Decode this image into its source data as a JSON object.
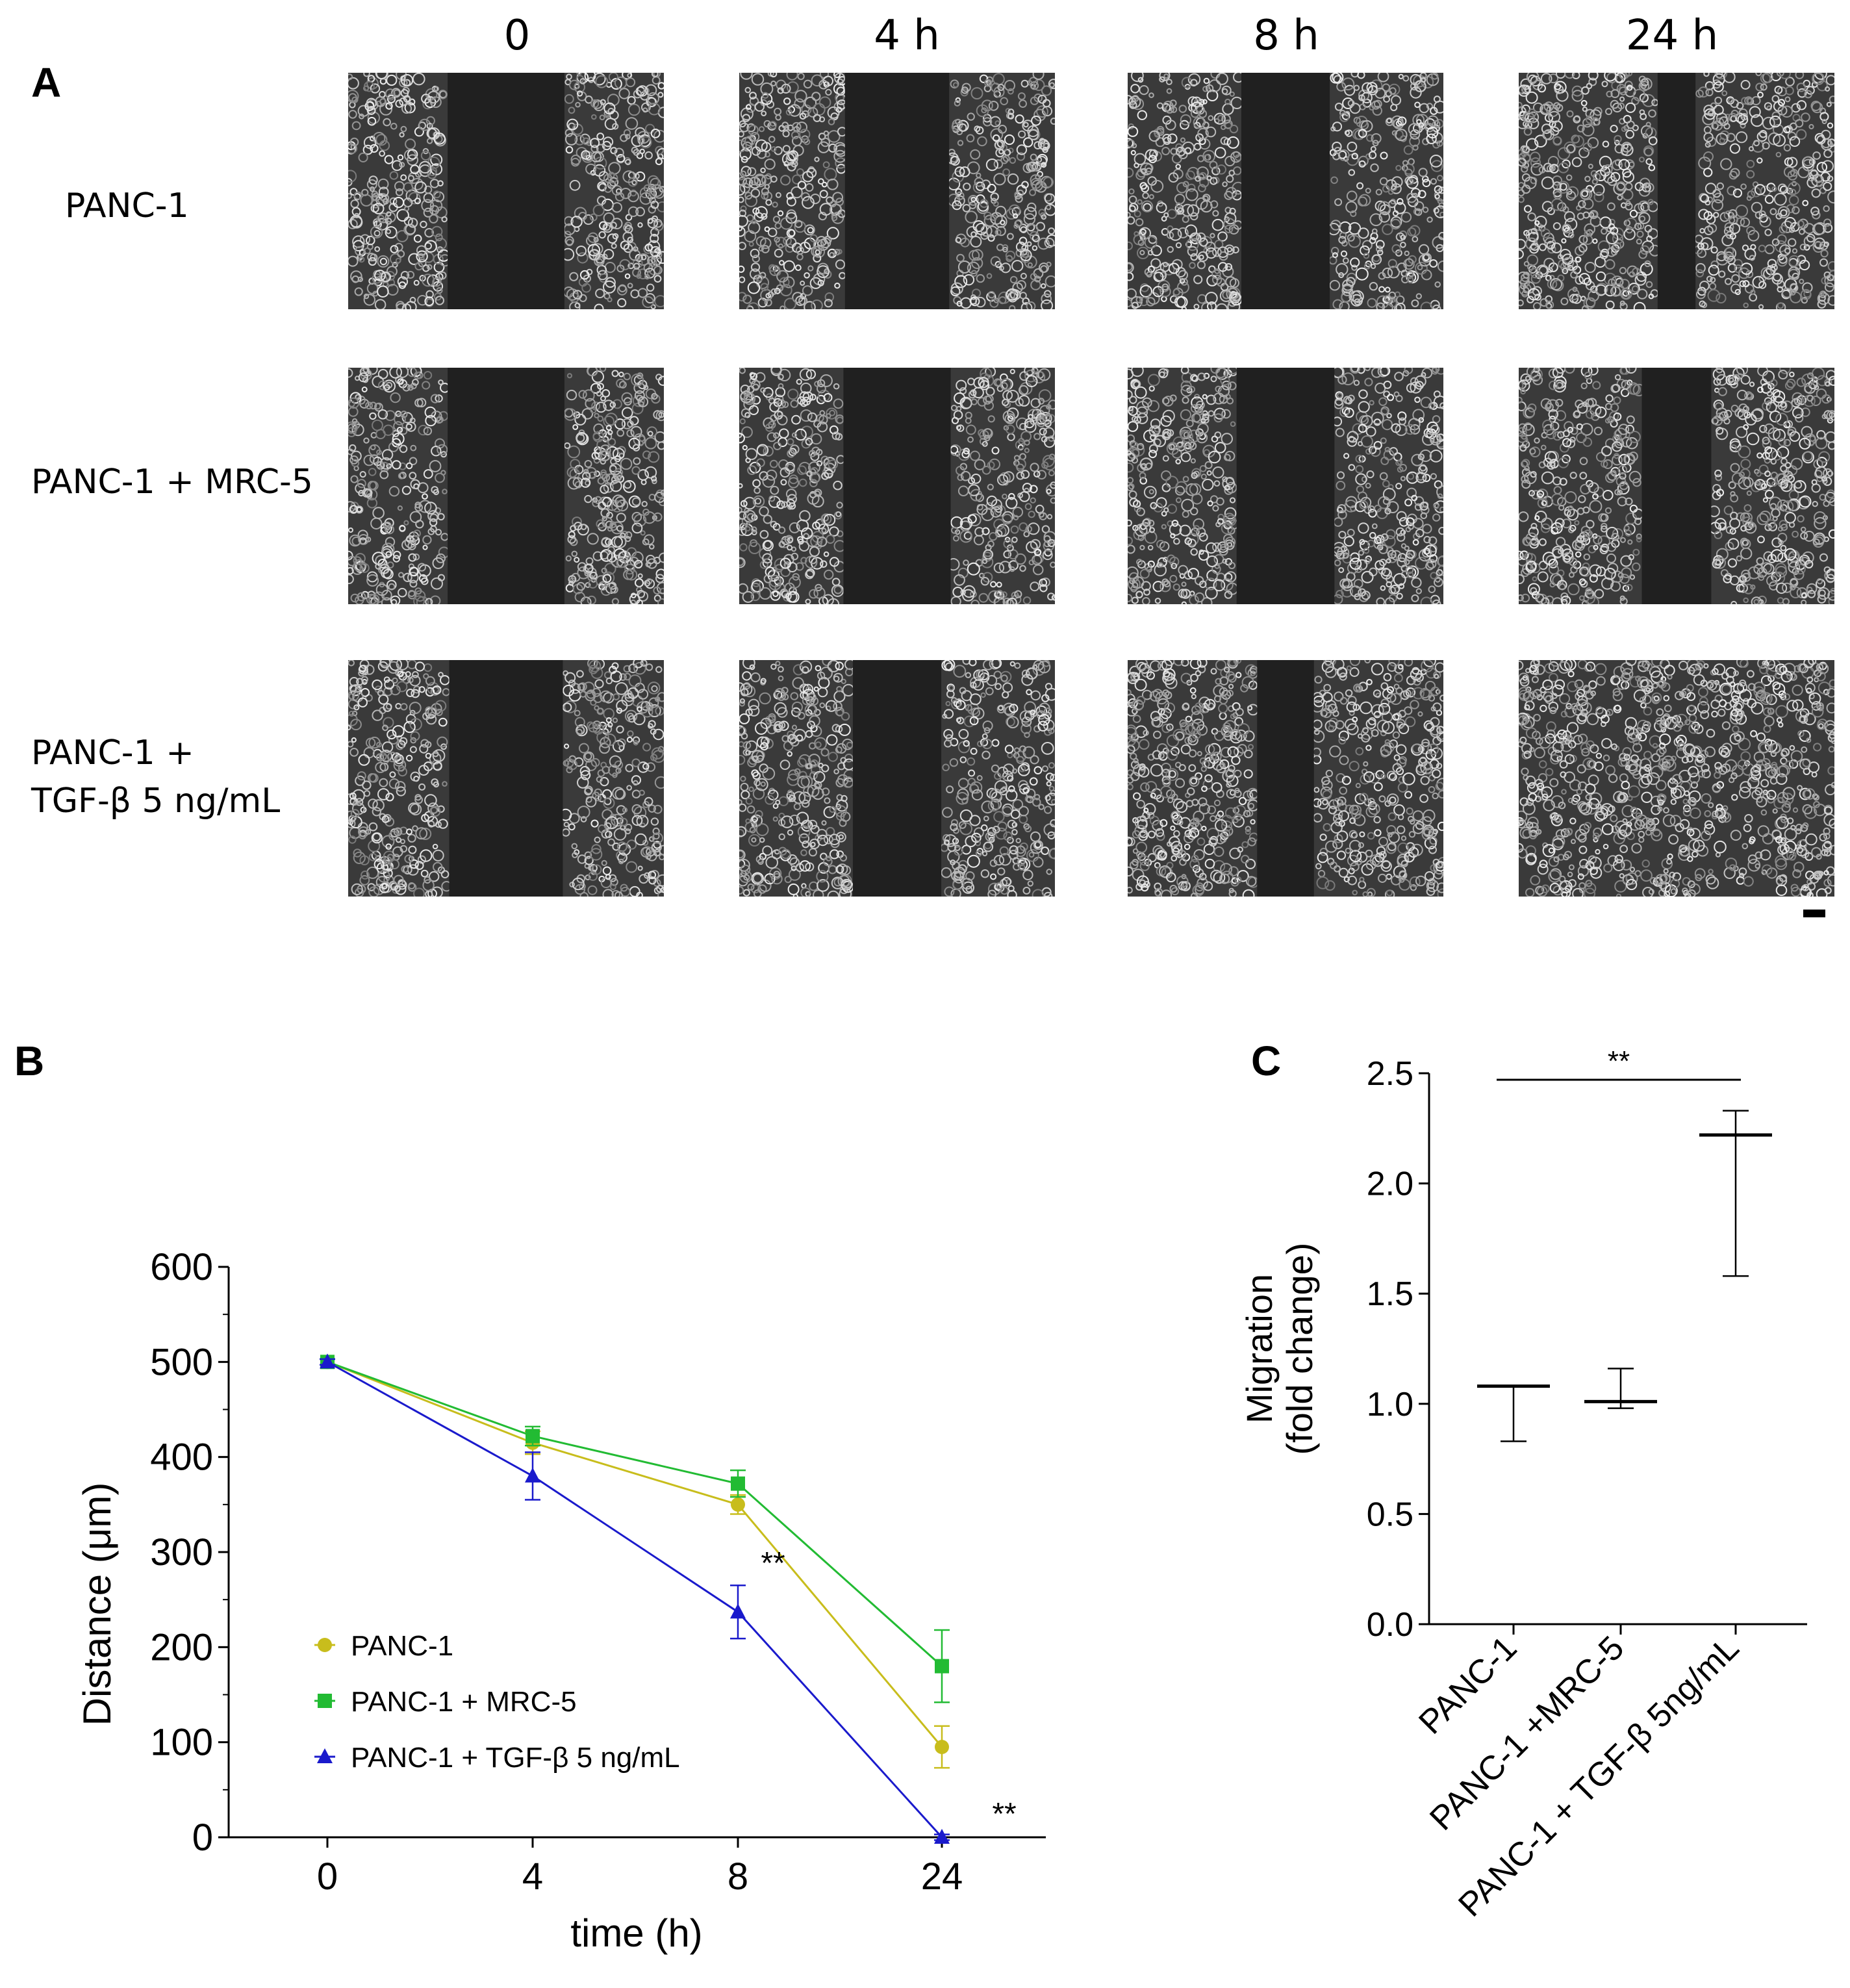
{
  "panel_a": {
    "letter": "A",
    "time_headers": [
      "0",
      "4 h",
      "8 h",
      "24 h"
    ],
    "row_labels": [
      [
        "PANC-1"
      ],
      [
        "PANC-1 + MRC-5"
      ],
      [
        "PANC-1 +",
        "TGF-β 5 ng/mL"
      ]
    ],
    "images": [
      {
        "name": "micrograph-panc1-0h",
        "gap_fraction": 0.37
      },
      {
        "name": "micrograph-panc1-4h",
        "gap_fraction": 0.33
      },
      {
        "name": "micrograph-panc1-8h",
        "gap_fraction": 0.28
      },
      {
        "name": "micrograph-panc1-24h",
        "gap_fraction": 0.12
      },
      {
        "name": "micrograph-panc1-mrc5-0h",
        "gap_fraction": 0.37
      },
      {
        "name": "micrograph-panc1-mrc5-4h",
        "gap_fraction": 0.34
      },
      {
        "name": "micrograph-panc1-mrc5-8h",
        "gap_fraction": 0.31
      },
      {
        "name": "micrograph-panc1-mrc5-24h",
        "gap_fraction": 0.22
      },
      {
        "name": "micrograph-panc1-tgfb-0h",
        "gap_fraction": 0.36
      },
      {
        "name": "micrograph-panc1-tgfb-4h",
        "gap_fraction": 0.28
      },
      {
        "name": "micrograph-panc1-tgfb-8h",
        "gap_fraction": 0.18
      },
      {
        "name": "micrograph-panc1-tgfb-24h",
        "gap_fraction": 0.0
      }
    ]
  },
  "chart_data": [
    {
      "panel": "B",
      "type": "line",
      "categories": [
        "0",
        "4",
        "8",
        "24"
      ],
      "xlabel": "time (h)",
      "ylabel": "Distance (μm)",
      "ylim": [
        0,
        600
      ],
      "yticks": [
        0,
        100,
        200,
        300,
        400,
        500,
        600
      ],
      "grid": false,
      "legend_position": "bottom-left",
      "series": [
        {
          "name": "PANC-1",
          "color": "#c8bd1c",
          "marker": "circle",
          "values": [
            500,
            415,
            350,
            95
          ],
          "errors": [
            3,
            12,
            10,
            22
          ]
        },
        {
          "name": "PANC-1 + MRC-5",
          "color": "#22bb33",
          "marker": "square",
          "values": [
            500,
            422,
            372,
            180
          ],
          "errors": [
            3,
            10,
            14,
            38
          ]
        },
        {
          "name": "PANC-1 + TGF-β 5 ng/mL",
          "color": "#1a1acc",
          "marker": "triangle",
          "values": [
            500,
            380,
            237,
            0
          ],
          "errors": [
            3,
            25,
            28,
            3
          ]
        }
      ],
      "annotations": [
        {
          "text": "**",
          "x": "8"
        },
        {
          "text": "**",
          "x": "24"
        }
      ]
    },
    {
      "panel": "C",
      "type": "scatter",
      "categories": [
        "PANC-1",
        "PANC-1 +MRC-5",
        "PANC-1 + TGF-β 5ng/mL"
      ],
      "ylabel": "Migration\n(fold change)",
      "ylim": [
        0,
        2.5
      ],
      "yticks": [
        "0.0",
        "0.5",
        "1.0",
        "1.5",
        "2.0",
        "2.5"
      ],
      "grid": false,
      "values": [
        1.08,
        1.01,
        2.22
      ],
      "low": [
        0.83,
        0.98,
        1.58
      ],
      "high": [
        1.08,
        1.16,
        2.33
      ],
      "significance": {
        "text": "**",
        "from": "PANC-1",
        "to": "PANC-1 + TGF-β 5ng/mL"
      }
    }
  ],
  "panel_b": {
    "letter": "B"
  },
  "panel_c": {
    "letter": "C"
  }
}
